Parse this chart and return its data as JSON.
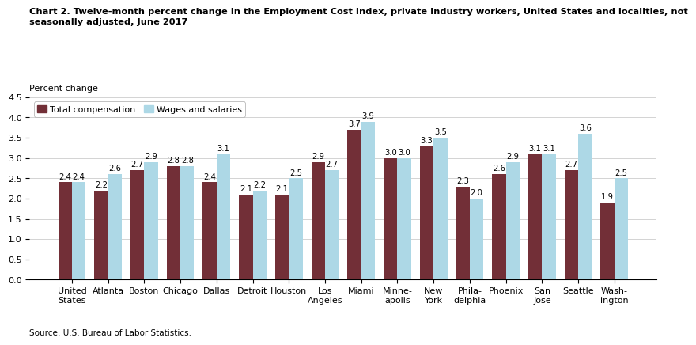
{
  "categories": [
    "United\nStates",
    "Atlanta",
    "Boston",
    "Chicago",
    "Dallas",
    "Detroit",
    "Houston",
    "Los\nAngeles",
    "Miami",
    "Minne-\napolis",
    "New\nYork",
    "Phila-\ndelphia",
    "Phoenix",
    "San\nJose",
    "Seattle",
    "Wash-\nington"
  ],
  "total_compensation": [
    2.4,
    2.2,
    2.7,
    2.8,
    2.4,
    2.1,
    2.1,
    2.9,
    3.7,
    3.0,
    3.3,
    2.3,
    2.6,
    3.1,
    2.7,
    1.9
  ],
  "wages_salaries": [
    2.4,
    2.6,
    2.9,
    2.8,
    3.1,
    2.2,
    2.5,
    2.7,
    3.9,
    3.0,
    3.5,
    2.0,
    2.9,
    3.1,
    3.6,
    2.5
  ],
  "total_color": "#722F37",
  "wages_color": "#add8e6",
  "title_line1": "Chart 2. Twelve-month percent change in the Employment Cost Index, private industry workers, United States and localities, not",
  "title_line2": "seasonally adjusted, June 2017",
  "ylabel": "Percent change",
  "ylim": [
    0,
    4.5
  ],
  "yticks": [
    0.0,
    0.5,
    1.0,
    1.5,
    2.0,
    2.5,
    3.0,
    3.5,
    4.0,
    4.5
  ],
  "legend_total": "Total compensation",
  "legend_wages": "Wages and salaries",
  "source": "Source: U.S. Bureau of Labor Statistics.",
  "bar_width": 0.38,
  "tick_fontsize": 8.0,
  "value_fontsize": 7.2
}
